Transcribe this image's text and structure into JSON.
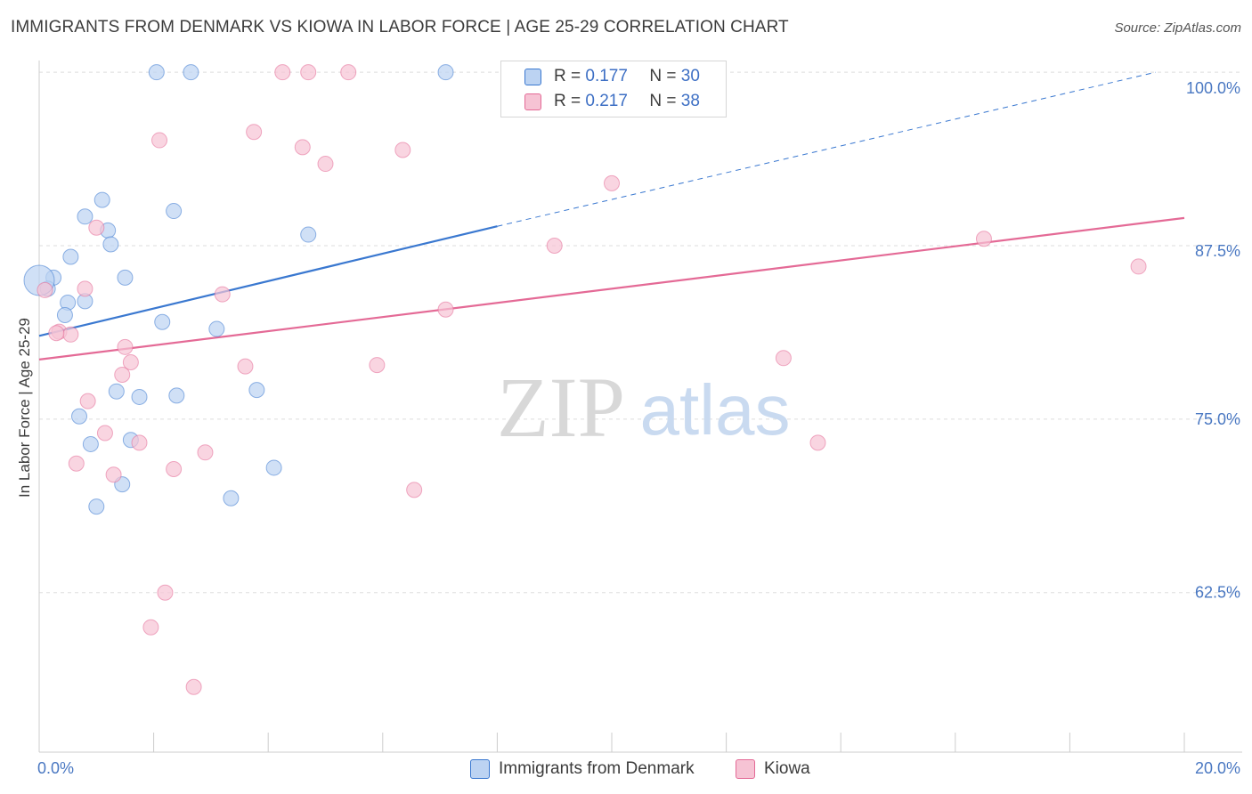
{
  "title": "IMMIGRANTS FROM DENMARK VS KIOWA IN LABOR FORCE | AGE 25-29 CORRELATION CHART",
  "source": "Source: ZipAtlas.com",
  "watermark": {
    "zip": "ZIP",
    "atlas": "atlas"
  },
  "colors": {
    "blue": "#3a78d0",
    "blue_fill": "#bcd3f2",
    "pink": "#e46a96",
    "pink_fill": "#f6c3d4",
    "axis_text": "#4a78c2",
    "grid": "#dddddd"
  },
  "legend": {
    "r_label": "R =",
    "n_label": "N =",
    "rows": [
      {
        "r": "0.177",
        "n": "30"
      },
      {
        "r": "0.217",
        "n": "38"
      }
    ]
  },
  "chart_data": {
    "type": "scatter",
    "title": "IMMIGRANTS FROM DENMARK VS KIOWA IN LABOR FORCE | AGE 25-29 CORRELATION CHART",
    "xlabel": "",
    "ylabel": "In Labor Force | Age 25-29",
    "xlim": [
      0,
      20
    ],
    "ylim": [
      51,
      102
    ],
    "x_tick_labels": [
      "0.0%",
      "20.0%"
    ],
    "y_ticks": [
      62.5,
      75.0,
      87.5,
      100.0
    ],
    "y_tick_labels": [
      "62.5%",
      "75.0%",
      "87.5%",
      "100.0%"
    ],
    "grid": true,
    "series": [
      {
        "name": "Immigrants from Denmark",
        "color": "#3a78d0",
        "fill": "#bcd3f2",
        "r": 0.177,
        "n": 30,
        "trend": {
          "x0": 0.0,
          "y0": 81.0,
          "x1": 8.0,
          "y1": 88.9,
          "dash_to_x": 19.5,
          "dash_to_y": 100.0
        },
        "points": [
          {
            "x": 2.05,
            "y": 100.0
          },
          {
            "x": 2.65,
            "y": 100.0
          },
          {
            "x": 7.1,
            "y": 100.0
          },
          {
            "x": 1.1,
            "y": 90.8
          },
          {
            "x": 0.8,
            "y": 89.6
          },
          {
            "x": 2.35,
            "y": 90.0
          },
          {
            "x": 1.2,
            "y": 88.6
          },
          {
            "x": 1.25,
            "y": 87.6
          },
          {
            "x": 4.7,
            "y": 88.3
          },
          {
            "x": 0.55,
            "y": 86.7
          },
          {
            "x": 0.25,
            "y": 85.2
          },
          {
            "x": 1.5,
            "y": 85.2
          },
          {
            "x": 0.15,
            "y": 84.4
          },
          {
            "x": 0.0,
            "y": 85.0
          },
          {
            "x": 0.8,
            "y": 83.5
          },
          {
            "x": 0.5,
            "y": 83.4
          },
          {
            "x": 0.45,
            "y": 82.5
          },
          {
            "x": 2.15,
            "y": 82.0
          },
          {
            "x": 3.1,
            "y": 81.5
          },
          {
            "x": 1.35,
            "y": 77.0
          },
          {
            "x": 1.75,
            "y": 76.6
          },
          {
            "x": 2.4,
            "y": 76.7
          },
          {
            "x": 3.8,
            "y": 77.1
          },
          {
            "x": 0.7,
            "y": 75.2
          },
          {
            "x": 0.9,
            "y": 73.2
          },
          {
            "x": 1.6,
            "y": 73.5
          },
          {
            "x": 4.1,
            "y": 71.5
          },
          {
            "x": 1.45,
            "y": 70.3
          },
          {
            "x": 3.35,
            "y": 69.3
          },
          {
            "x": 1.0,
            "y": 68.7
          }
        ]
      },
      {
        "name": "Kiowa",
        "color": "#e46a96",
        "fill": "#f6c3d4",
        "r": 0.217,
        "n": 38,
        "trend": {
          "x0": 0.0,
          "y0": 79.3,
          "x1": 20.0,
          "y1": 89.5
        },
        "points": [
          {
            "x": 4.25,
            "y": 100.0
          },
          {
            "x": 4.7,
            "y": 100.0
          },
          {
            "x": 5.4,
            "y": 100.0
          },
          {
            "x": 2.1,
            "y": 95.1
          },
          {
            "x": 3.75,
            "y": 95.7
          },
          {
            "x": 4.6,
            "y": 94.6
          },
          {
            "x": 5.0,
            "y": 93.4
          },
          {
            "x": 6.35,
            "y": 94.4
          },
          {
            "x": 10.0,
            "y": 92.0
          },
          {
            "x": 1.0,
            "y": 88.8
          },
          {
            "x": 9.0,
            "y": 87.5
          },
          {
            "x": 16.5,
            "y": 88.0
          },
          {
            "x": 19.2,
            "y": 86.0
          },
          {
            "x": 0.1,
            "y": 84.3
          },
          {
            "x": 0.8,
            "y": 84.4
          },
          {
            "x": 3.2,
            "y": 84.0
          },
          {
            "x": 7.1,
            "y": 82.9
          },
          {
            "x": 0.35,
            "y": 81.3
          },
          {
            "x": 0.55,
            "y": 81.1
          },
          {
            "x": 1.5,
            "y": 80.2
          },
          {
            "x": 1.6,
            "y": 79.1
          },
          {
            "x": 3.6,
            "y": 78.8
          },
          {
            "x": 5.9,
            "y": 78.9
          },
          {
            "x": 13.0,
            "y": 79.4
          },
          {
            "x": 1.45,
            "y": 78.2
          },
          {
            "x": 0.85,
            "y": 76.3
          },
          {
            "x": 1.15,
            "y": 74.0
          },
          {
            "x": 1.75,
            "y": 73.3
          },
          {
            "x": 2.9,
            "y": 72.6
          },
          {
            "x": 13.6,
            "y": 73.3
          },
          {
            "x": 0.65,
            "y": 71.8
          },
          {
            "x": 2.35,
            "y": 71.4
          },
          {
            "x": 1.3,
            "y": 71.0
          },
          {
            "x": 6.55,
            "y": 69.9
          },
          {
            "x": 2.2,
            "y": 62.5
          },
          {
            "x": 1.95,
            "y": 60.0
          },
          {
            "x": 2.7,
            "y": 55.7
          },
          {
            "x": 0.3,
            "y": 81.2
          }
        ]
      }
    ]
  }
}
